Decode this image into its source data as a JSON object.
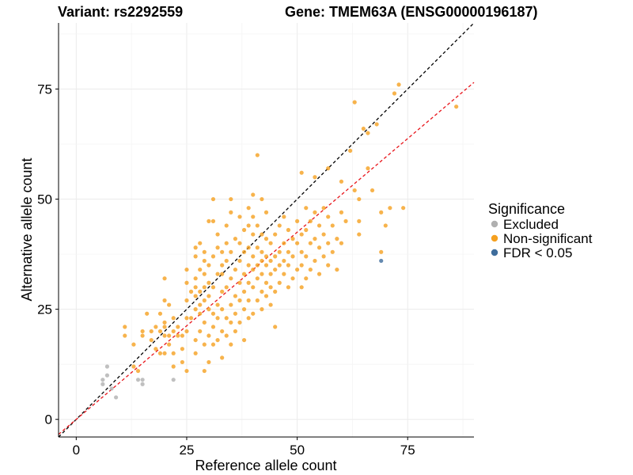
{
  "chart_data": {
    "type": "scatter",
    "title_left": "Variant: rs2292559",
    "title_right": "Gene: TMEM63A (ENSG00000196187)",
    "xlabel": "Reference allele count",
    "ylabel": "Alternative allele count",
    "xlim": [
      -4,
      90
    ],
    "ylim": [
      -4,
      90
    ],
    "xticks": [
      0,
      25,
      50,
      75
    ],
    "yticks": [
      0,
      25,
      50,
      75
    ],
    "grid": true,
    "legend": {
      "title": "Significance",
      "position": "right",
      "items": [
        {
          "label": "Excluded",
          "color": "#b0b0b0"
        },
        {
          "label": "Non-significant",
          "color": "#f5a01f"
        },
        {
          "label": "FDR < 0.05",
          "color": "#3e6d9c"
        }
      ]
    },
    "reference_lines": [
      {
        "name": "equal",
        "color": "#000000",
        "style": "dashed",
        "intercept": 0,
        "slope": 1
      },
      {
        "name": "fit",
        "color": "#e8141a",
        "style": "dashed",
        "intercept": 0,
        "slope": 0.85
      }
    ],
    "series": [
      {
        "name": "Excluded",
        "color": "#b0b0b0",
        "points": [
          [
            6,
            8
          ],
          [
            6,
            9
          ],
          [
            7,
            10
          ],
          [
            7,
            12
          ],
          [
            8,
            7
          ],
          [
            9,
            5
          ],
          [
            14,
            9
          ],
          [
            15,
            8
          ],
          [
            15,
            9
          ],
          [
            22,
            9
          ]
        ]
      },
      {
        "name": "Non-significant",
        "color": "#f5a01f",
        "points": [
          [
            11,
            19
          ],
          [
            11,
            21
          ],
          [
            13,
            12
          ],
          [
            13,
            17
          ],
          [
            14,
            11
          ],
          [
            15,
            20
          ],
          [
            15,
            19
          ],
          [
            16,
            24
          ],
          [
            17,
            18
          ],
          [
            17,
            20
          ],
          [
            18,
            16
          ],
          [
            18,
            21
          ],
          [
            19,
            15
          ],
          [
            19,
            20
          ],
          [
            19,
            24
          ],
          [
            20,
            15
          ],
          [
            20,
            19
          ],
          [
            20,
            21
          ],
          [
            20,
            22
          ],
          [
            20,
            27
          ],
          [
            20,
            32
          ],
          [
            21,
            17
          ],
          [
            21,
            19
          ],
          [
            21,
            26
          ],
          [
            22,
            12
          ],
          [
            22,
            15
          ],
          [
            22,
            20
          ],
          [
            22,
            23
          ],
          [
            23,
            19
          ],
          [
            23,
            21
          ],
          [
            24,
            13
          ],
          [
            24,
            16
          ],
          [
            24,
            19
          ],
          [
            25,
            11
          ],
          [
            25,
            20
          ],
          [
            25,
            23
          ],
          [
            25,
            27
          ],
          [
            25,
            31
          ],
          [
            25,
            34
          ],
          [
            26,
            23
          ],
          [
            26,
            29
          ],
          [
            27,
            15
          ],
          [
            27,
            18
          ],
          [
            27,
            25
          ],
          [
            27,
            28
          ],
          [
            27,
            30
          ],
          [
            27,
            32
          ],
          [
            27,
            37
          ],
          [
            27,
            39
          ],
          [
            28,
            20
          ],
          [
            28,
            24
          ],
          [
            28,
            26
          ],
          [
            28,
            29
          ],
          [
            28,
            34
          ],
          [
            28,
            40
          ],
          [
            29,
            11
          ],
          [
            29,
            17
          ],
          [
            29,
            22
          ],
          [
            29,
            27
          ],
          [
            29,
            30
          ],
          [
            29,
            33
          ],
          [
            29,
            36
          ],
          [
            29,
            38
          ],
          [
            30,
            13
          ],
          [
            30,
            19
          ],
          [
            30,
            25
          ],
          [
            30,
            28
          ],
          [
            30,
            31
          ],
          [
            30,
            35
          ],
          [
            30,
            45
          ],
          [
            31,
            17
          ],
          [
            31,
            21
          ],
          [
            31,
            24
          ],
          [
            31,
            30
          ],
          [
            31,
            37
          ],
          [
            31,
            45
          ],
          [
            31,
            50
          ],
          [
            32,
            18
          ],
          [
            32,
            23
          ],
          [
            32,
            26
          ],
          [
            32,
            33
          ],
          [
            32,
            39
          ],
          [
            32,
            42
          ],
          [
            33,
            14
          ],
          [
            33,
            20
          ],
          [
            33,
            25
          ],
          [
            33,
            29
          ],
          [
            33,
            33
          ],
          [
            33,
            35
          ],
          [
            33,
            38
          ],
          [
            34,
            19
          ],
          [
            34,
            23
          ],
          [
            34,
            30
          ],
          [
            34,
            36
          ],
          [
            34,
            40
          ],
          [
            34,
            44
          ],
          [
            35,
            17
          ],
          [
            35,
            22
          ],
          [
            35,
            26
          ],
          [
            35,
            32
          ],
          [
            35,
            38
          ],
          [
            35,
            47
          ],
          [
            35,
            50
          ],
          [
            36,
            20
          ],
          [
            36,
            24
          ],
          [
            36,
            28
          ],
          [
            36,
            34
          ],
          [
            36,
            41
          ],
          [
            37,
            22
          ],
          [
            37,
            27
          ],
          [
            37,
            31
          ],
          [
            37,
            36
          ],
          [
            37,
            40
          ],
          [
            37,
            46
          ],
          [
            38,
            18
          ],
          [
            38,
            25
          ],
          [
            38,
            29
          ],
          [
            38,
            33
          ],
          [
            38,
            38
          ],
          [
            38,
            43
          ],
          [
            39,
            23
          ],
          [
            39,
            27
          ],
          [
            39,
            31
          ],
          [
            39,
            35
          ],
          [
            39,
            39
          ],
          [
            39,
            44
          ],
          [
            39,
            48
          ],
          [
            40,
            24
          ],
          [
            40,
            30
          ],
          [
            40,
            34
          ],
          [
            40,
            37
          ],
          [
            40,
            42
          ],
          [
            40,
            46
          ],
          [
            40,
            51
          ],
          [
            41,
            27
          ],
          [
            41,
            32
          ],
          [
            41,
            35
          ],
          [
            41,
            39
          ],
          [
            41,
            44
          ],
          [
            41,
            60
          ],
          [
            42,
            25
          ],
          [
            42,
            29
          ],
          [
            42,
            33
          ],
          [
            42,
            36
          ],
          [
            42,
            38
          ],
          [
            42,
            42
          ],
          [
            42,
            50
          ],
          [
            43,
            28
          ],
          [
            43,
            31
          ],
          [
            43,
            35
          ],
          [
            43,
            37
          ],
          [
            43,
            41
          ],
          [
            43,
            47
          ],
          [
            44,
            26
          ],
          [
            44,
            30
          ],
          [
            44,
            33
          ],
          [
            44,
            36
          ],
          [
            44,
            40
          ],
          [
            45,
            21
          ],
          [
            45,
            29
          ],
          [
            45,
            34
          ],
          [
            45,
            37
          ],
          [
            45,
            42
          ],
          [
            46,
            31
          ],
          [
            46,
            35
          ],
          [
            46,
            38
          ],
          [
            46,
            44
          ],
          [
            47,
            33
          ],
          [
            47,
            36
          ],
          [
            47,
            40
          ],
          [
            47,
            46
          ],
          [
            48,
            30
          ],
          [
            48,
            35
          ],
          [
            48,
            38
          ],
          [
            48,
            43
          ],
          [
            49,
            32
          ],
          [
            49,
            37
          ],
          [
            49,
            41
          ],
          [
            50,
            34
          ],
          [
            50,
            40
          ],
          [
            50,
            45
          ],
          [
            51,
            30
          ],
          [
            51,
            35
          ],
          [
            51,
            38
          ],
          [
            51,
            42
          ],
          [
            51,
            56
          ],
          [
            52,
            32
          ],
          [
            52,
            37
          ],
          [
            52,
            43
          ],
          [
            52,
            48
          ],
          [
            53,
            34
          ],
          [
            53,
            40
          ],
          [
            53,
            45
          ],
          [
            54,
            36
          ],
          [
            54,
            41
          ],
          [
            54,
            47
          ],
          [
            54,
            55
          ],
          [
            55,
            33
          ],
          [
            55,
            39
          ],
          [
            55,
            44
          ],
          [
            56,
            37
          ],
          [
            56,
            42
          ],
          [
            56,
            48
          ],
          [
            57,
            35
          ],
          [
            57,
            40
          ],
          [
            57,
            46
          ],
          [
            57,
            57
          ],
          [
            58,
            38
          ],
          [
            58,
            44
          ],
          [
            59,
            34
          ],
          [
            59,
            41
          ],
          [
            60,
            40
          ],
          [
            60,
            47
          ],
          [
            60,
            54
          ],
          [
            61,
            45
          ],
          [
            62,
            61
          ],
          [
            63,
            52
          ],
          [
            63,
            72
          ],
          [
            64,
            45
          ],
          [
            64,
            50
          ],
          [
            64,
            42
          ],
          [
            65,
            66
          ],
          [
            66,
            57
          ],
          [
            66,
            65
          ],
          [
            67,
            52
          ],
          [
            68,
            67
          ],
          [
            69,
            47
          ],
          [
            69,
            38
          ],
          [
            70,
            44
          ],
          [
            71,
            48
          ],
          [
            72,
            74
          ],
          [
            73,
            76
          ],
          [
            74,
            48
          ],
          [
            86,
            71
          ]
        ]
      },
      {
        "name": "FDR < 0.05",
        "color": "#3e6d9c",
        "points": [
          [
            69,
            36
          ]
        ]
      }
    ]
  }
}
